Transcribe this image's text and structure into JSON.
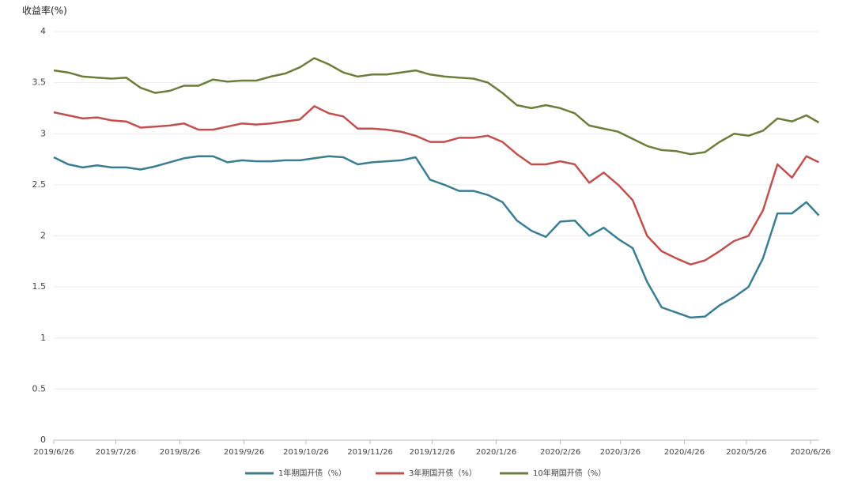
{
  "chart_data": {
    "type": "line",
    "y_label": "收益率(%)",
    "x": [
      "2019/6/26",
      "2019/7/3",
      "2019/7/10",
      "2019/7/17",
      "2019/7/24",
      "2019/7/31",
      "2019/8/7",
      "2019/8/14",
      "2019/8/21",
      "2019/8/28",
      "2019/9/4",
      "2019/9/11",
      "2019/9/18",
      "2019/9/25",
      "2019/10/2",
      "2019/10/9",
      "2019/10/16",
      "2019/10/23",
      "2019/10/30",
      "2019/11/6",
      "2019/11/13",
      "2019/11/20",
      "2019/11/27",
      "2019/12/4",
      "2019/12/11",
      "2019/12/18",
      "2019/12/25",
      "2020/1/1",
      "2020/1/8",
      "2020/1/15",
      "2020/1/22",
      "2020/1/29",
      "2020/2/5",
      "2020/2/12",
      "2020/2/19",
      "2020/2/26",
      "2020/3/4",
      "2020/3/11",
      "2020/3/18",
      "2020/3/25",
      "2020/4/1",
      "2020/4/8",
      "2020/4/15",
      "2020/4/22",
      "2020/4/29",
      "2020/5/6",
      "2020/5/13",
      "2020/5/20",
      "2020/5/27",
      "2020/6/3",
      "2020/6/10",
      "2020/6/17",
      "2020/6/24",
      "2020/6/30"
    ],
    "series": [
      {
        "name": "1年期国开债（%）",
        "color": "#3a7d91",
        "values": [
          2.77,
          2.7,
          2.67,
          2.69,
          2.67,
          2.67,
          2.65,
          2.68,
          2.72,
          2.76,
          2.78,
          2.78,
          2.72,
          2.74,
          2.73,
          2.73,
          2.74,
          2.74,
          2.76,
          2.78,
          2.77,
          2.7,
          2.72,
          2.73,
          2.74,
          2.77,
          2.55,
          2.5,
          2.44,
          2.44,
          2.4,
          2.33,
          2.15,
          2.05,
          1.99,
          2.14,
          2.15,
          2.0,
          2.08,
          1.97,
          1.88,
          1.55,
          1.3,
          1.25,
          1.2,
          1.21,
          1.32,
          1.4,
          1.5,
          1.78,
          2.22,
          2.22,
          2.33,
          2.2
        ]
      },
      {
        "name": "3年期国开债（%）",
        "color": "#c0504d",
        "values": [
          3.21,
          3.18,
          3.15,
          3.16,
          3.13,
          3.12,
          3.06,
          3.07,
          3.08,
          3.1,
          3.04,
          3.04,
          3.07,
          3.1,
          3.09,
          3.1,
          3.12,
          3.14,
          3.27,
          3.2,
          3.17,
          3.05,
          3.05,
          3.04,
          3.02,
          2.98,
          2.92,
          2.92,
          2.96,
          2.96,
          2.98,
          2.92,
          2.8,
          2.7,
          2.7,
          2.73,
          2.7,
          2.52,
          2.62,
          2.5,
          2.35,
          2.0,
          1.85,
          1.78,
          1.72,
          1.76,
          1.85,
          1.95,
          2.0,
          2.25,
          2.7,
          2.57,
          2.78,
          2.72
        ]
      },
      {
        "name": "10年期国开债（%）",
        "color": "#6b7d3a",
        "values": [
          3.62,
          3.6,
          3.56,
          3.55,
          3.54,
          3.55,
          3.45,
          3.4,
          3.42,
          3.47,
          3.47,
          3.53,
          3.51,
          3.52,
          3.52,
          3.56,
          3.59,
          3.65,
          3.74,
          3.68,
          3.6,
          3.56,
          3.58,
          3.58,
          3.6,
          3.62,
          3.58,
          3.56,
          3.55,
          3.54,
          3.5,
          3.4,
          3.28,
          3.25,
          3.28,
          3.25,
          3.2,
          3.08,
          3.05,
          3.02,
          2.95,
          2.88,
          2.84,
          2.83,
          2.8,
          2.82,
          2.92,
          3.0,
          2.98,
          3.03,
          3.15,
          3.12,
          3.18,
          3.11
        ]
      }
    ],
    "xlim": [
      "2019/6/26",
      "2020/6/30"
    ],
    "xticks": [
      "2019/6/26",
      "2019/7/26",
      "2019/8/26",
      "2019/9/26",
      "2019/10/26",
      "2019/11/26",
      "2019/12/26",
      "2020/1/26",
      "2020/2/26",
      "2020/3/26",
      "2020/4/26",
      "2020/5/26",
      "2020/6/26"
    ],
    "ylim": [
      0,
      4
    ],
    "yticks": [
      0,
      0.5,
      1,
      1.5,
      2,
      2.5,
      3,
      3.5,
      4
    ],
    "grid": true
  }
}
